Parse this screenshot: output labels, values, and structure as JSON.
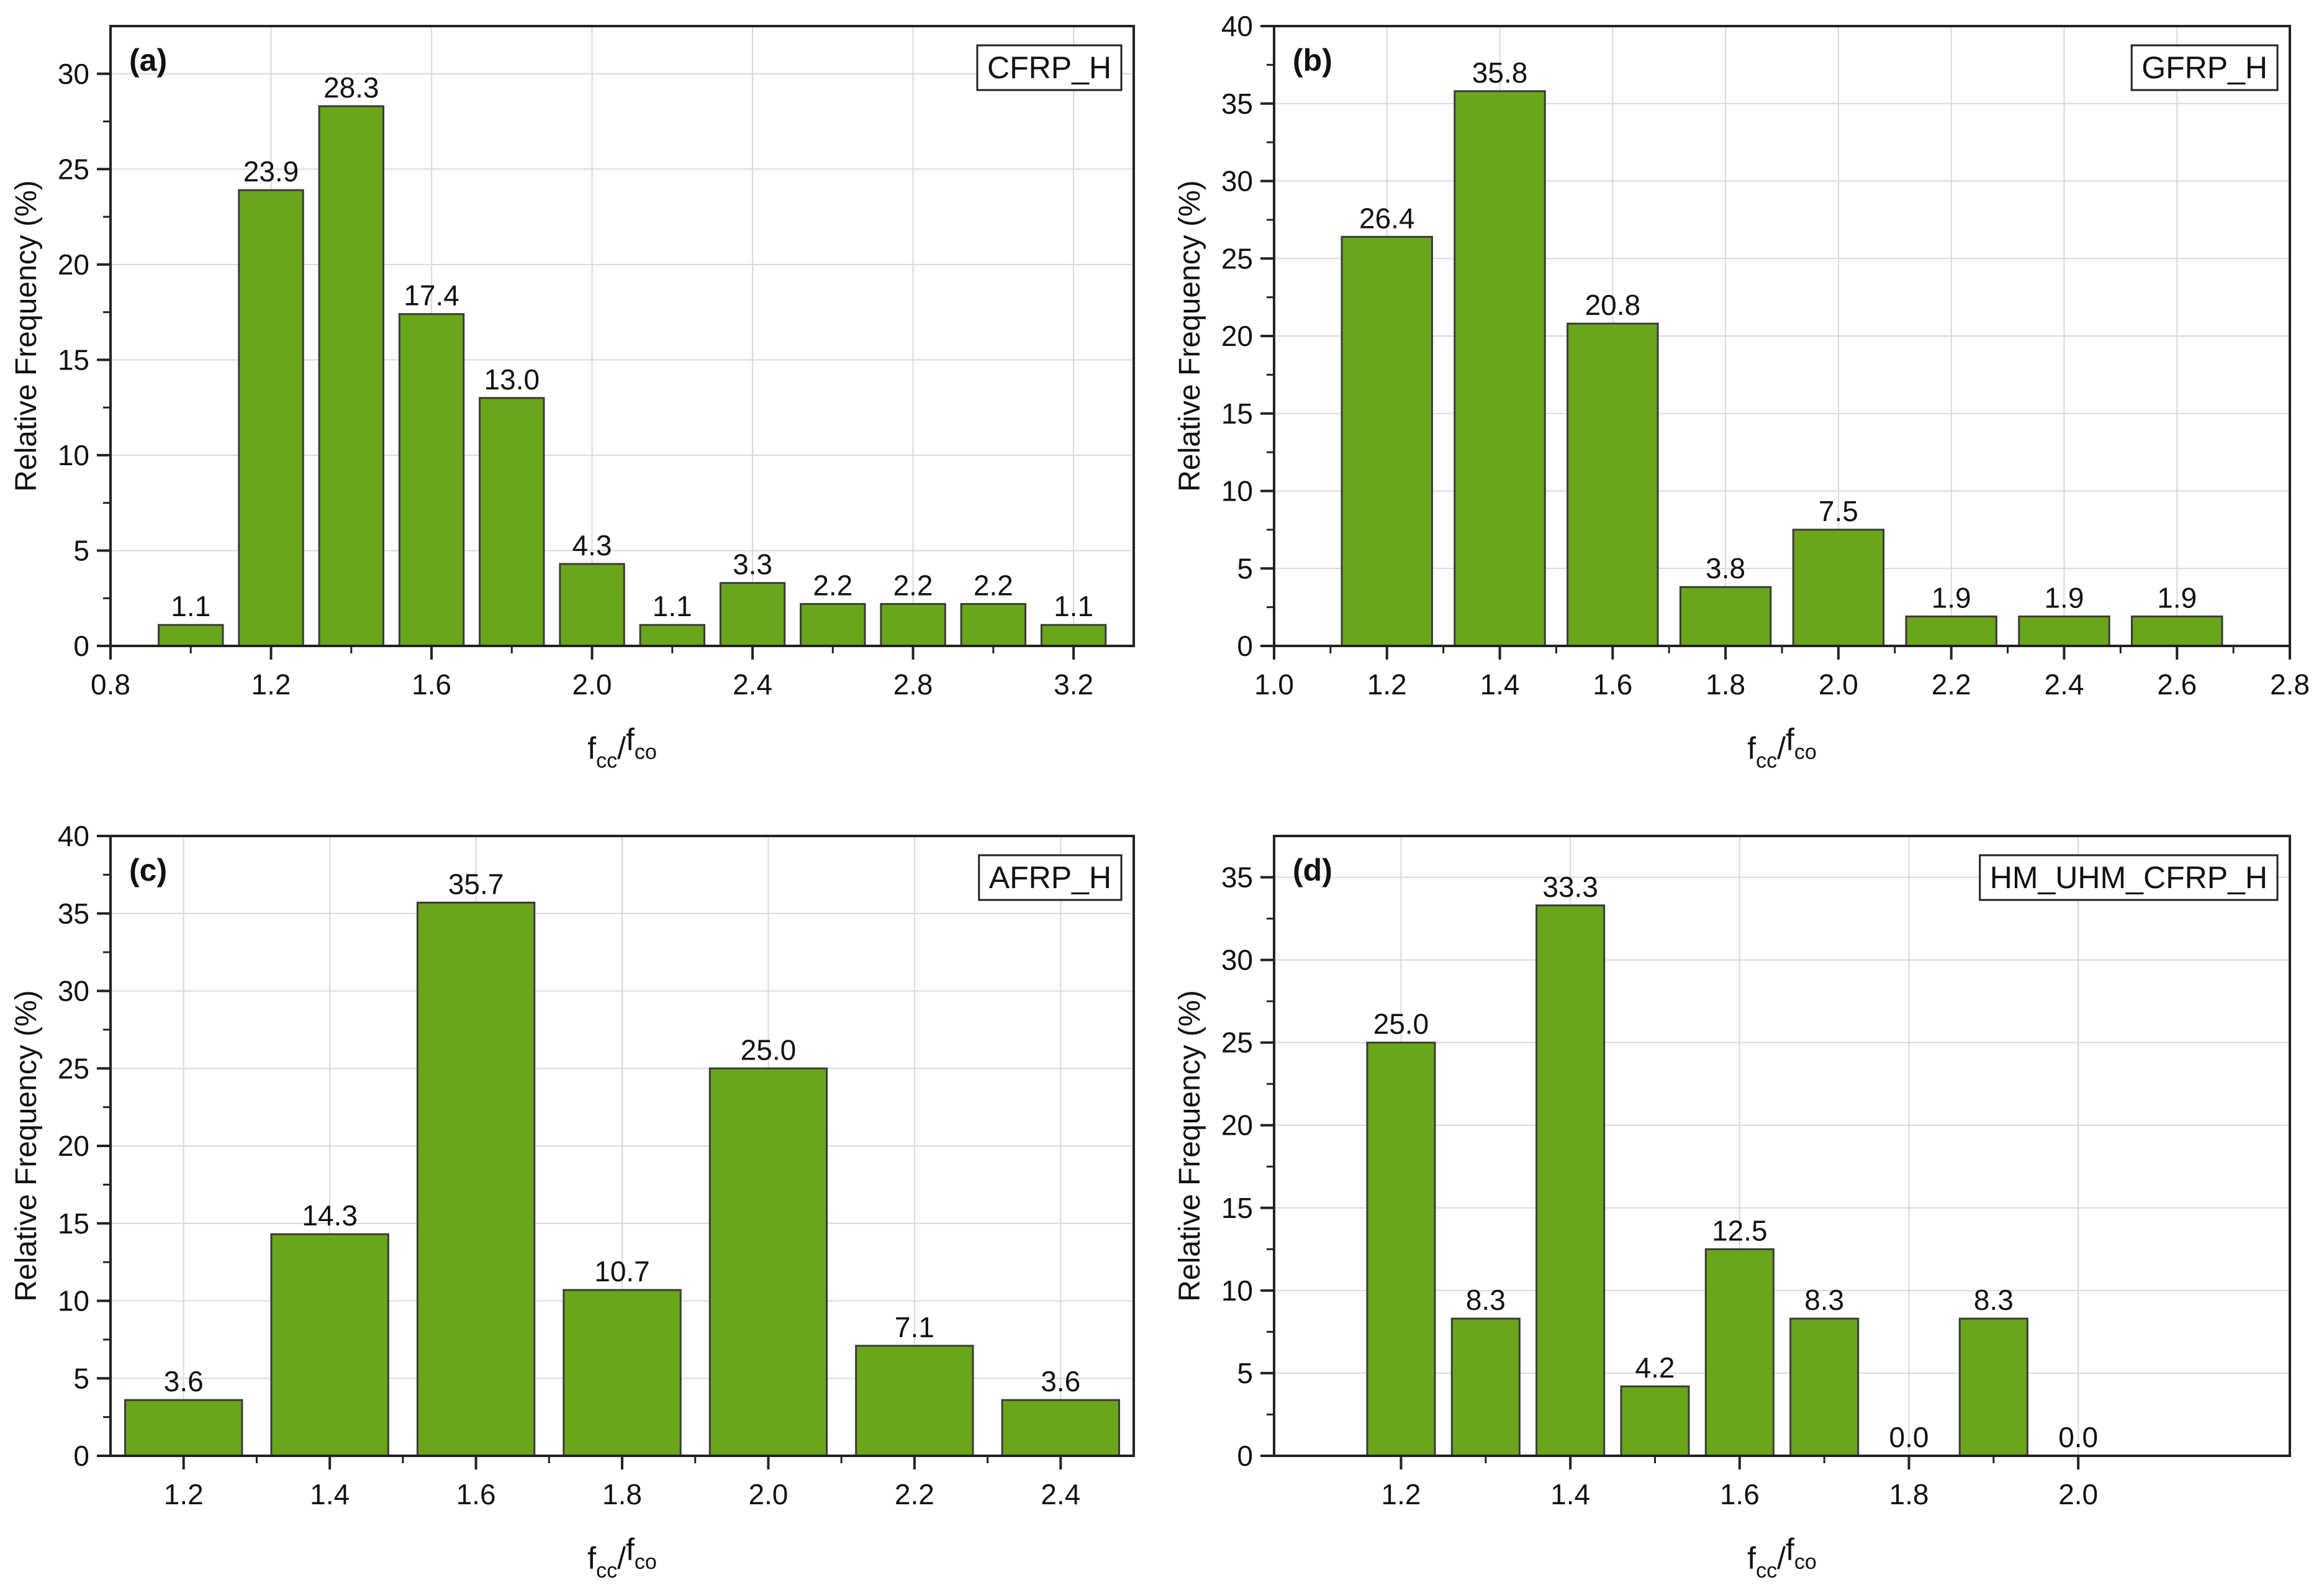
{
  "bar_color": "#6aa61a",
  "bar_edge_color": "#3a3a3a",
  "axis_color": "#222222",
  "grid_color": "#d9d9d9",
  "chart_data": [
    {
      "type": "bar",
      "panel": "(a)",
      "legend": "CFRP_H",
      "x": [
        1.0,
        1.2,
        1.4,
        1.6,
        1.8,
        2.0,
        2.2,
        2.4,
        2.6,
        2.8,
        3.0,
        3.2
      ],
      "values": [
        1.1,
        23.9,
        28.3,
        17.4,
        13.0,
        4.3,
        1.1,
        3.3,
        2.2,
        2.2,
        2.2,
        1.1
      ],
      "labels": [
        "1.1",
        "23.9",
        "28.3",
        "17.4",
        "13.0",
        "4.3",
        "1.1",
        "3.3",
        "2.2",
        "2.2",
        "2.2",
        "1.1"
      ],
      "bin_width": 0.16,
      "xlim": [
        0.8,
        3.35
      ],
      "ylim": [
        0,
        32.5
      ],
      "xticks": [
        0.8,
        1.2,
        1.6,
        2.0,
        2.4,
        2.8,
        3.2
      ],
      "xtick_labels": [
        "0.8",
        "1.2",
        "1.6",
        "2.0",
        "2.4",
        "2.8",
        "3.2"
      ],
      "yticks": [
        0,
        5,
        10,
        15,
        20,
        25,
        30
      ],
      "ytick_labels": [
        "0",
        "5",
        "10",
        "15",
        "20",
        "25",
        "30"
      ],
      "ylabel": "Relative Frequency (%)",
      "xlabel": {
        "f1": "f",
        "s1": "cc",
        "slash": "/",
        "f2": "f",
        "s2": "co"
      },
      "grid": true
    },
    {
      "type": "bar",
      "panel": "(b)",
      "legend": "GFRP_H",
      "x": [
        1.2,
        1.4,
        1.6,
        1.8,
        2.0,
        2.2,
        2.4,
        2.6
      ],
      "values": [
        26.4,
        35.8,
        20.8,
        3.8,
        7.5,
        1.9,
        1.9,
        1.9
      ],
      "labels": [
        "26.4",
        "35.8",
        "20.8",
        "3.8",
        "7.5",
        "1.9",
        "1.9",
        "1.9"
      ],
      "bin_width": 0.16,
      "xlim": [
        1.0,
        2.8
      ],
      "ylim": [
        0,
        40
      ],
      "xticks": [
        1.0,
        1.2,
        1.4,
        1.6,
        1.8,
        2.0,
        2.2,
        2.4,
        2.6,
        2.8
      ],
      "xtick_labels": [
        "1.0",
        "1.2",
        "1.4",
        "1.6",
        "1.8",
        "2.0",
        "2.2",
        "2.4",
        "2.6",
        "2.8"
      ],
      "yticks": [
        0,
        5,
        10,
        15,
        20,
        25,
        30,
        35,
        40
      ],
      "ytick_labels": [
        "0",
        "5",
        "10",
        "15",
        "20",
        "25",
        "30",
        "35",
        "40"
      ],
      "ylabel": "Relative Frequency (%)",
      "xlabel": {
        "f1": "f",
        "s1": "cc",
        "slash": "/",
        "f2": "f",
        "s2": "co"
      },
      "grid": true
    },
    {
      "type": "bar",
      "panel": "(c)",
      "legend": "AFRP_H",
      "x": [
        1.2,
        1.4,
        1.6,
        1.8,
        2.0,
        2.2,
        2.4
      ],
      "values": [
        3.6,
        14.3,
        35.7,
        10.7,
        25.0,
        7.1,
        3.6
      ],
      "labels": [
        "3.6",
        "14.3",
        "35.7",
        "10.7",
        "25.0",
        "7.1",
        "3.6"
      ],
      "bin_width": 0.16,
      "xlim": [
        1.1,
        2.5
      ],
      "ylim": [
        0,
        40
      ],
      "xticks": [
        1.2,
        1.4,
        1.6,
        1.8,
        2.0,
        2.2,
        2.4
      ],
      "xtick_labels": [
        "1.2",
        "1.4",
        "1.6",
        "1.8",
        "2.0",
        "2.2",
        "2.4"
      ],
      "yticks": [
        0,
        5,
        10,
        15,
        20,
        25,
        30,
        35,
        40
      ],
      "ytick_labels": [
        "0",
        "5",
        "10",
        "15",
        "20",
        "25",
        "30",
        "35",
        "40"
      ],
      "ylabel": "Relative Frequency (%)",
      "xlabel": {
        "f1": "f",
        "s1": "cc",
        "slash": "/",
        "f2": "f",
        "s2": "co"
      },
      "grid": true
    },
    {
      "type": "bar",
      "panel": "(d)",
      "legend": "HM_UHM_CFRP_H",
      "x": [
        1.2,
        1.3,
        1.4,
        1.5,
        1.6,
        1.7,
        1.8,
        1.9,
        2.0
      ],
      "values": [
        25.0,
        8.3,
        33.3,
        4.2,
        12.5,
        8.3,
        0.0,
        8.3,
        0.0
      ],
      "labels": [
        "25.0",
        "8.3",
        "33.3",
        "4.2",
        "12.5",
        "8.3",
        "0.0",
        "8.3",
        "0.0"
      ],
      "bin_width": 0.08,
      "xlim": [
        1.05,
        2.25
      ],
      "ylim": [
        0,
        37.5
      ],
      "xticks": [
        1.2,
        1.4,
        1.6,
        1.8,
        2.0
      ],
      "xtick_labels": [
        "1.2",
        "1.4",
        "1.6",
        "1.8",
        "2.0"
      ],
      "yticks": [
        0,
        5,
        10,
        15,
        20,
        25,
        30,
        35
      ],
      "ytick_labels": [
        "0",
        "5",
        "10",
        "15",
        "20",
        "25",
        "30",
        "35"
      ],
      "ylabel": "Relative Frequency (%)",
      "xlabel": {
        "f1": "f",
        "s1": "cc",
        "slash": "/",
        "f2": "f",
        "s2": "co"
      },
      "grid": true
    }
  ]
}
